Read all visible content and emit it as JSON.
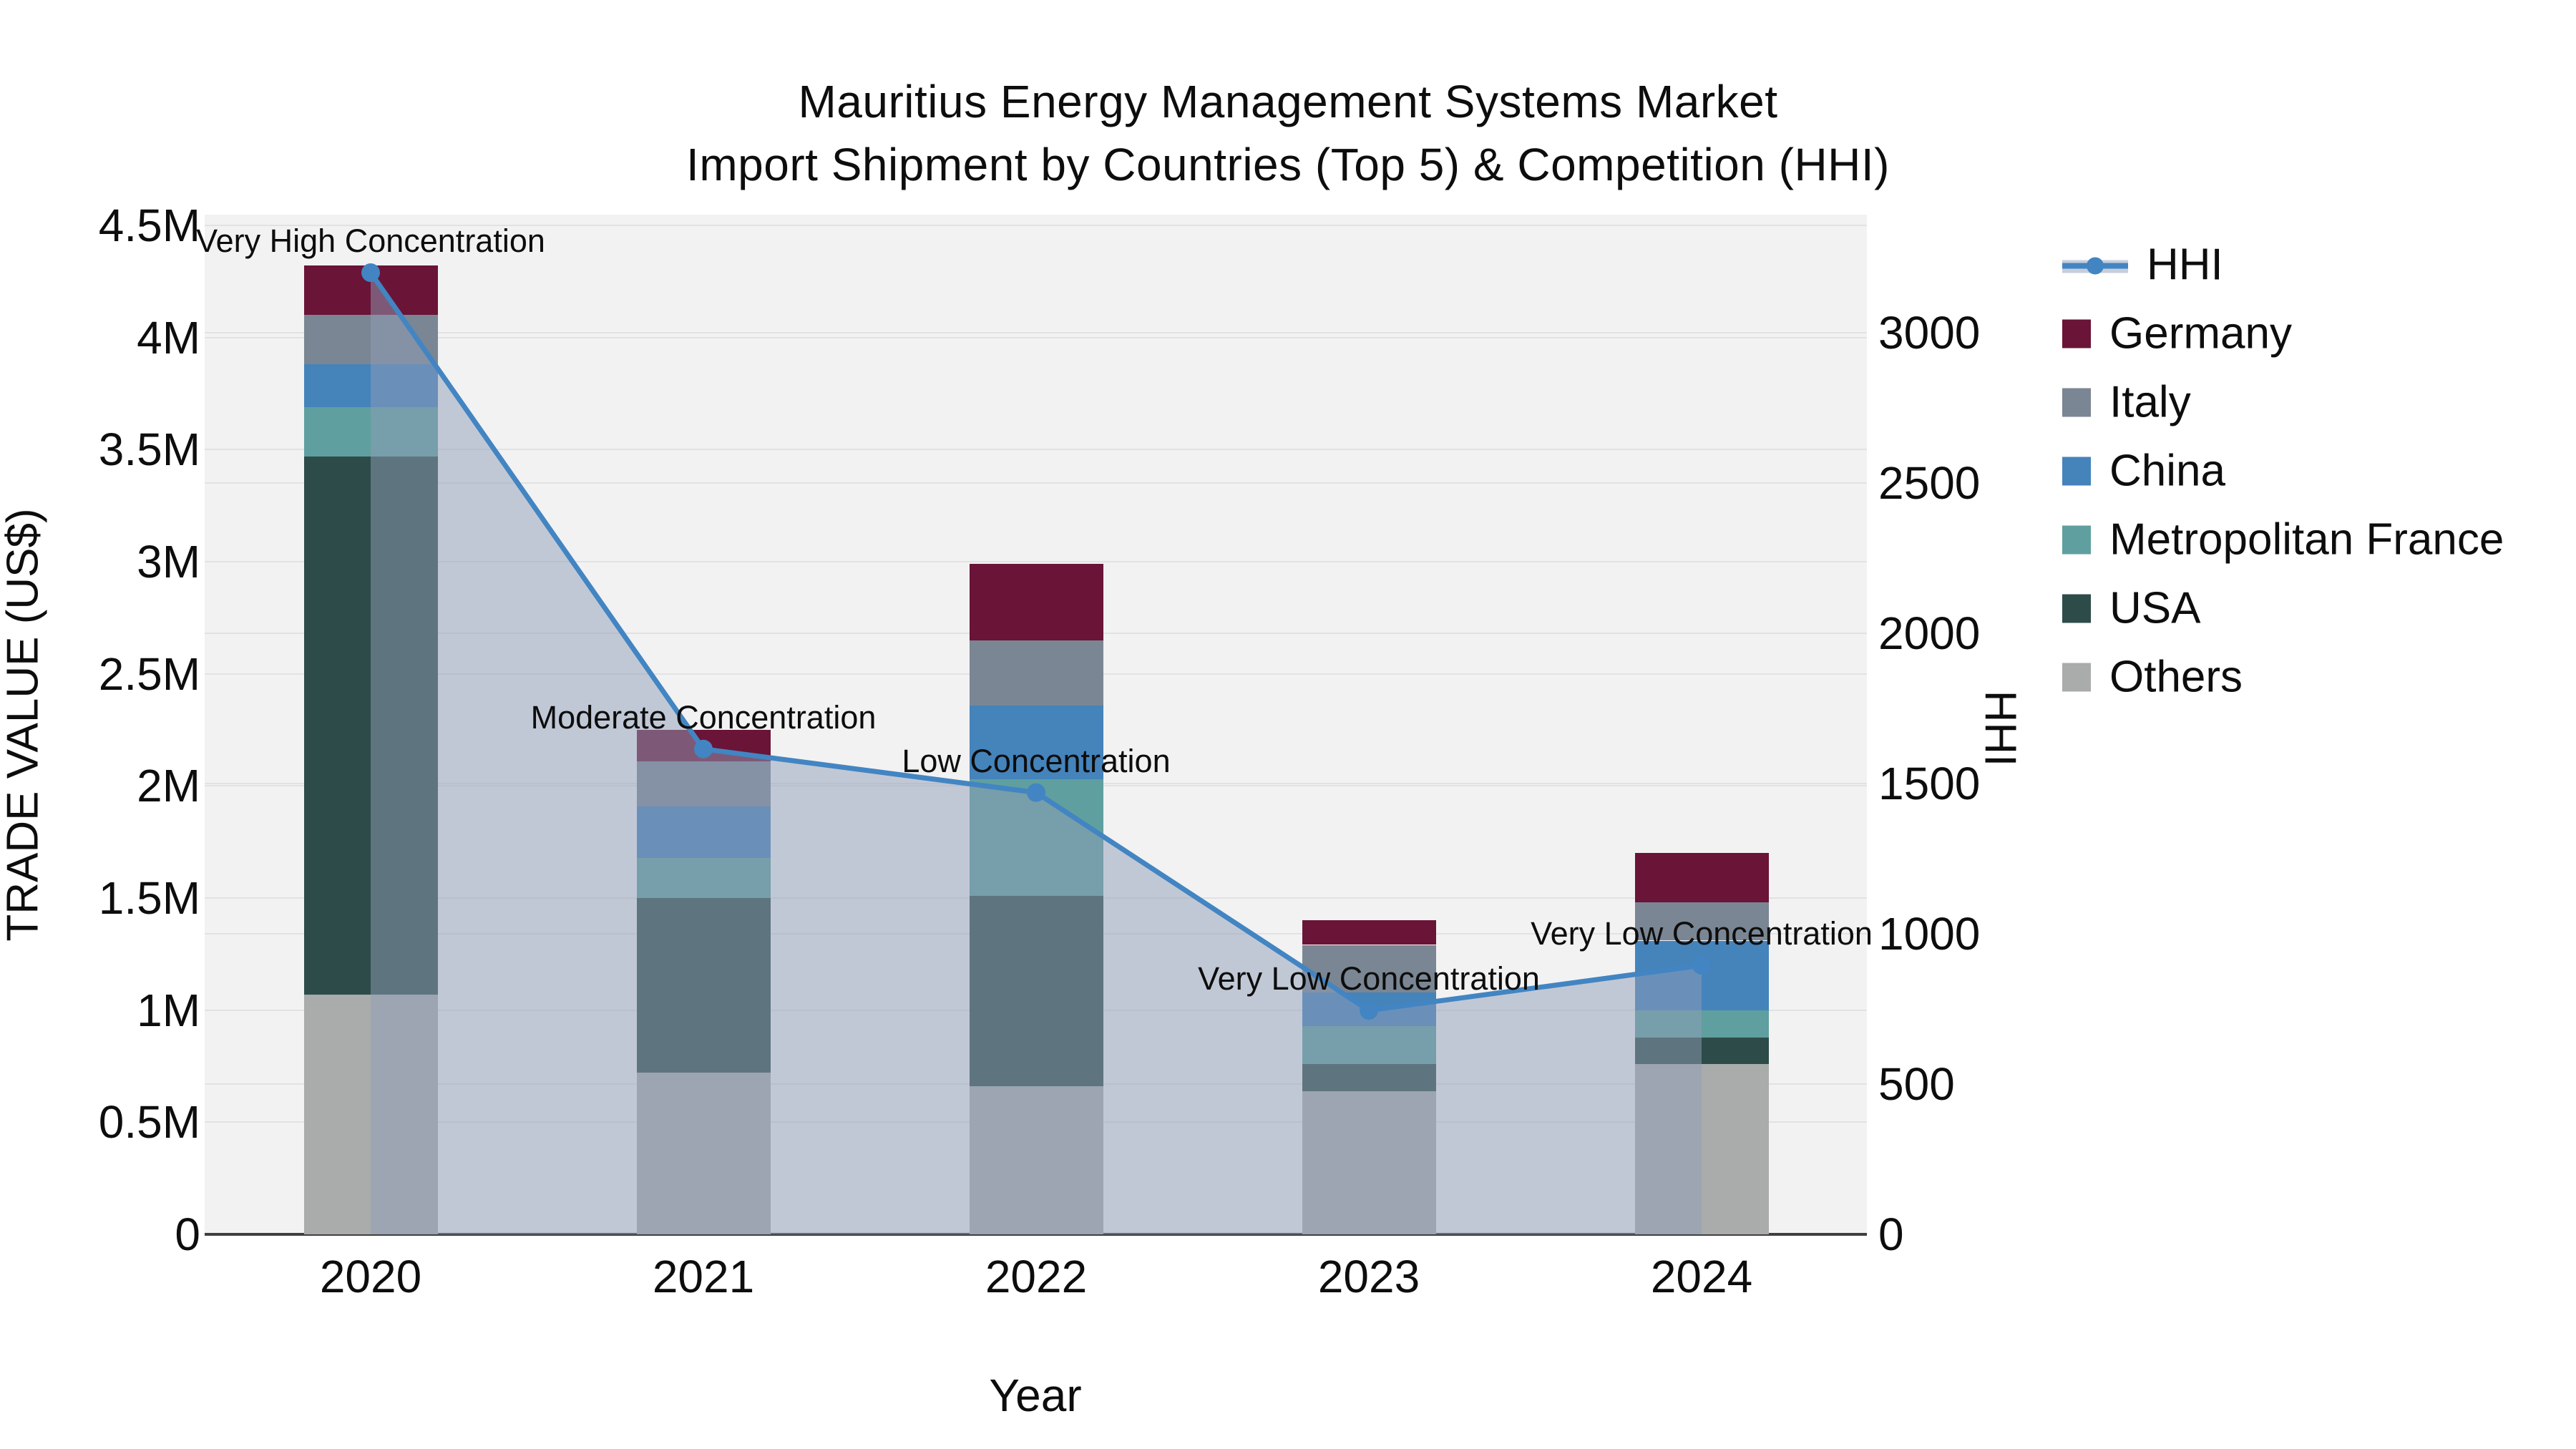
{
  "title": {
    "line1": "Mauritius Energy Management Systems Market",
    "line2": "Import Shipment by Countries (Top 5) & Competition (HHI)"
  },
  "axes": {
    "x": {
      "title": "Year"
    },
    "left": {
      "title": "TRADE VALUE (US$)",
      "ticks": [
        "0",
        "0.5M",
        "1M",
        "1.5M",
        "2M",
        "2.5M",
        "3M",
        "3.5M",
        "4M",
        "4.5M"
      ],
      "tick_values": [
        0,
        0.5,
        1,
        1.5,
        2,
        2.5,
        3,
        3.5,
        4,
        4.5
      ],
      "range": [
        0,
        4.548
      ]
    },
    "right": {
      "title": "HHI",
      "ticks": [
        "0",
        "500",
        "1000",
        "1500",
        "2000",
        "2500",
        "3000"
      ],
      "tick_values": [
        0,
        500,
        1000,
        1500,
        2000,
        2500,
        3000
      ],
      "range": [
        0,
        3393
      ]
    }
  },
  "legend": {
    "items": [
      {
        "label": "HHI",
        "type": "line",
        "color": "#4285c2"
      },
      {
        "label": "Germany",
        "type": "swatch",
        "color": "#6a1437"
      },
      {
        "label": "Italy",
        "type": "swatch",
        "color": "#7a8693"
      },
      {
        "label": "China",
        "type": "swatch",
        "color": "#4583bb"
      },
      {
        "label": "Metropolitan France",
        "type": "swatch",
        "color": "#5f9f9f"
      },
      {
        "label": "USA",
        "type": "swatch",
        "color": "#2d4c49"
      },
      {
        "label": "Others",
        "type": "swatch",
        "color": "#a9acab"
      }
    ]
  },
  "chart_data": {
    "type": "bar+line",
    "title": "Mauritius Energy Management Systems Market — Import Shipment by Countries (Top 5) & Competition (HHI)",
    "categories": [
      "2020",
      "2021",
      "2022",
      "2023",
      "2024"
    ],
    "values_unit": "M US$",
    "stack_order_bottom_to_top": [
      "Others",
      "USA",
      "Metropolitan France",
      "China",
      "Italy",
      "Germany"
    ],
    "series": [
      {
        "name": "Others",
        "color": "#a9acab",
        "values": [
          1.07,
          0.72,
          0.66,
          0.64,
          0.76
        ]
      },
      {
        "name": "USA",
        "color": "#2d4c49",
        "values": [
          2.4,
          0.78,
          0.85,
          0.12,
          0.12
        ]
      },
      {
        "name": "Metropolitan France",
        "color": "#5f9f9f",
        "values": [
          0.22,
          0.18,
          0.52,
          0.17,
          0.12
        ]
      },
      {
        "name": "China",
        "color": "#4583bb",
        "values": [
          0.19,
          0.23,
          0.33,
          0.15,
          0.31
        ]
      },
      {
        "name": "Italy",
        "color": "#7a8693",
        "values": [
          0.22,
          0.2,
          0.29,
          0.21,
          0.17
        ]
      },
      {
        "name": "Germany",
        "color": "#6a1437",
        "values": [
          0.22,
          0.14,
          0.34,
          0.11,
          0.22
        ]
      }
    ],
    "bar_totals": [
      4.32,
      2.25,
      2.99,
      1.4,
      1.7
    ],
    "line_series": {
      "name": "HHI",
      "axis": "right",
      "values": [
        3200,
        1615,
        1470,
        745,
        895
      ]
    },
    "annotations": [
      "Very High Concentration",
      "Moderate Concentration",
      "Low Concentration",
      "Very Low Concentration",
      "Very Low Concentration"
    ],
    "xlabel": "Year",
    "ylabel_left": "TRADE VALUE (US$)",
    "ylabel_right": "HHI",
    "ylim_left": [
      0,
      4.548
    ],
    "ylim_right": [
      0,
      3393
    ],
    "grid": true,
    "legend_position": "right"
  },
  "colors": {
    "plot_bg": "#f2f2f2",
    "grid": "#e2e2e2",
    "axis_line": "#3f3f3f",
    "hhi_line": "#4285c2",
    "hhi_fill": "rgba(143,158,184,0.5)",
    "text": "#0d0d0d"
  }
}
